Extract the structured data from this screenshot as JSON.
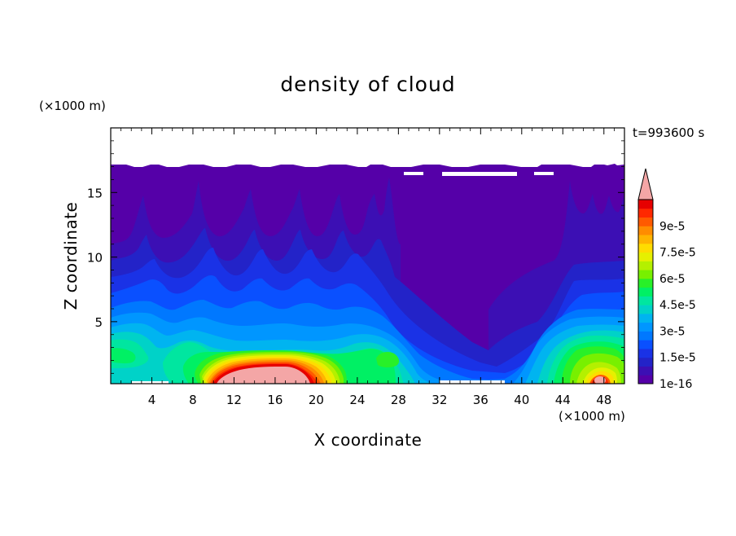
{
  "chart_data": {
    "type": "heatmap",
    "title": "density of cloud",
    "xlabel": "X coordinate",
    "ylabel": "Z coordinate",
    "x_unit": "(×1000 m)",
    "y_unit": "(×1000 m)",
    "time_label": "t=993600 s",
    "xlim": [
      0,
      50
    ],
    "ylim": [
      0.2,
      20
    ],
    "x_ticks": [
      4,
      8,
      12,
      16,
      20,
      24,
      28,
      32,
      36,
      40,
      44,
      48
    ],
    "y_ticks": [
      5,
      10,
      15
    ],
    "colorbar": {
      "tick_labels": [
        "1e-16",
        "1.5e-5",
        "3e-5",
        "4.5e-5",
        "6e-5",
        "7.5e-5",
        "9e-5"
      ],
      "tick_levels": [
        0,
        3,
        6,
        9,
        12,
        15,
        18
      ],
      "colors": [
        "#5500A8",
        "#3C0FB4",
        "#2323C8",
        "#1A32E6",
        "#0A50FF",
        "#0078FF",
        "#0096FF",
        "#00B4F0",
        "#00D2C8",
        "#00E6A0",
        "#00F064",
        "#28F028",
        "#78F000",
        "#B4F000",
        "#E6F000",
        "#FFDC00",
        "#FFB400",
        "#FF8C00",
        "#FF5A00",
        "#FF2800",
        "#E60000"
      ],
      "over_color": "#F4A6A6",
      "extend": "max"
    },
    "features": [
      {
        "label": "pink core",
        "x_range": [
          9.5,
          21
        ],
        "z_top": 2.1
      },
      {
        "label": "pink core",
        "x_range": [
          46.5,
          48.3
        ],
        "z_top": 0.9
      }
    ]
  }
}
